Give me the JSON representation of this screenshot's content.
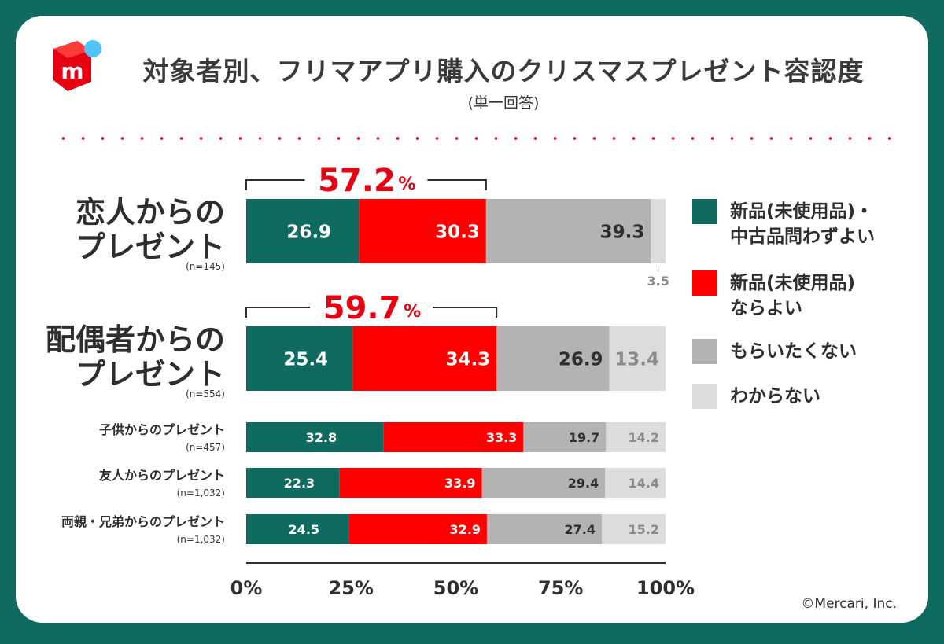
{
  "header": {
    "title": "対象者別、フリマアプリ購入のクリスマスプレゼント容認度",
    "subtitle": "(単一回答)",
    "logo_letter": "m",
    "copyright": "©Mercari, Inc."
  },
  "colors": {
    "frame": "#0f6b5f",
    "accent": "#e60012",
    "teal": "#0f6b5f",
    "red": "#ff0000",
    "gray": "#b3b3b3",
    "lightgray": "#dcdcdc"
  },
  "chart_data": {
    "type": "bar",
    "orientation": "horizontal",
    "stacked": true,
    "xlim": [
      0,
      100
    ],
    "xticks": [
      "0%",
      "25%",
      "50%",
      "75%",
      "100%"
    ],
    "legend_position": "right",
    "legend": [
      {
        "lines": [
          "新品(未使用品)・",
          "中古品問わずよい"
        ],
        "color": "#0f6b5f"
      },
      {
        "lines": [
          "新品(未使用品)",
          "ならよい"
        ],
        "color": "#ff0000"
      },
      {
        "lines": [
          "もらいたくない"
        ],
        "color": "#b3b3b3"
      },
      {
        "lines": [
          "わからない"
        ],
        "color": "#dcdcdc"
      }
    ],
    "categories": [
      {
        "label_lines": [
          "恋人からの",
          "プレゼント"
        ],
        "n": "(n=145)",
        "size": "large",
        "values": [
          26.9,
          30.3,
          39.3,
          3.5
        ],
        "labels": [
          "26.9",
          "30.3",
          "39.3",
          "3.5"
        ],
        "highlight": {
          "value": "57.2",
          "unit": "%"
        }
      },
      {
        "label_lines": [
          "配偶者からの",
          "プレゼント"
        ],
        "n": "(n=554)",
        "size": "large",
        "values": [
          25.4,
          34.3,
          26.9,
          13.4
        ],
        "labels": [
          "25.4",
          "34.3",
          "26.9",
          "13.4"
        ],
        "highlight": {
          "value": "59.7",
          "unit": "%"
        }
      },
      {
        "label_lines": [
          "子供からのプレゼント"
        ],
        "n": "(n=457)",
        "size": "small",
        "values": [
          32.8,
          33.3,
          19.7,
          14.2
        ],
        "labels": [
          "32.8",
          "33.3",
          "19.7",
          "14.2"
        ]
      },
      {
        "label_lines": [
          "友人からのプレゼント"
        ],
        "n": "(n=1,032)",
        "size": "small",
        "values": [
          22.3,
          33.9,
          29.4,
          14.4
        ],
        "labels": [
          "22.3",
          "33.9",
          "29.4",
          "14.4"
        ]
      },
      {
        "label_lines": [
          "両親・兄弟からのプレゼント"
        ],
        "n": "(n=1,032)",
        "size": "small",
        "values": [
          24.5,
          32.9,
          27.4,
          15.2
        ],
        "labels": [
          "24.5",
          "32.9",
          "27.4",
          "15.2"
        ]
      }
    ]
  }
}
